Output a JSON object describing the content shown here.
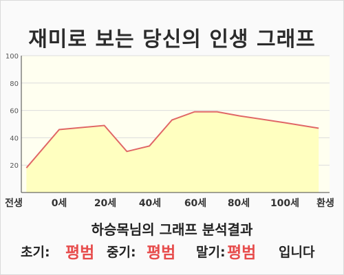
{
  "title": "재미로 보는 당신의 인생 그래프",
  "result_label": "하승목님의 그래프 분석결과",
  "summary": {
    "early_label": "초기:",
    "early_value": "평범",
    "mid_label": "중기:",
    "mid_value": "평범",
    "late_label": "말기:",
    "late_value": "평범",
    "suffix": "입니다"
  },
  "colors": {
    "line": "#e06666",
    "fill": "#ffffc0",
    "plot_bg": "#fffff0",
    "value_text": "#e74c4c"
  },
  "chart_data": {
    "type": "area",
    "x_categories": [
      "전생",
      "0세",
      "20세",
      "40세",
      "60세",
      "80세",
      "100세",
      "환생"
    ],
    "y_ticks": [
      20,
      40,
      60,
      80,
      100
    ],
    "ylim": [
      0,
      100
    ],
    "grid": true,
    "series": [
      {
        "points": [
          {
            "x": -14.5,
            "y": 18
          },
          {
            "x": 0,
            "y": 46
          },
          {
            "x": 20,
            "y": 49
          },
          {
            "x": 30,
            "y": 30
          },
          {
            "x": 40,
            "y": 34
          },
          {
            "x": 50,
            "y": 53
          },
          {
            "x": 60,
            "y": 59
          },
          {
            "x": 70,
            "y": 59
          },
          {
            "x": 80,
            "y": 56
          },
          {
            "x": 100,
            "y": 51
          },
          {
            "x": 115,
            "y": 47
          }
        ]
      }
    ]
  }
}
